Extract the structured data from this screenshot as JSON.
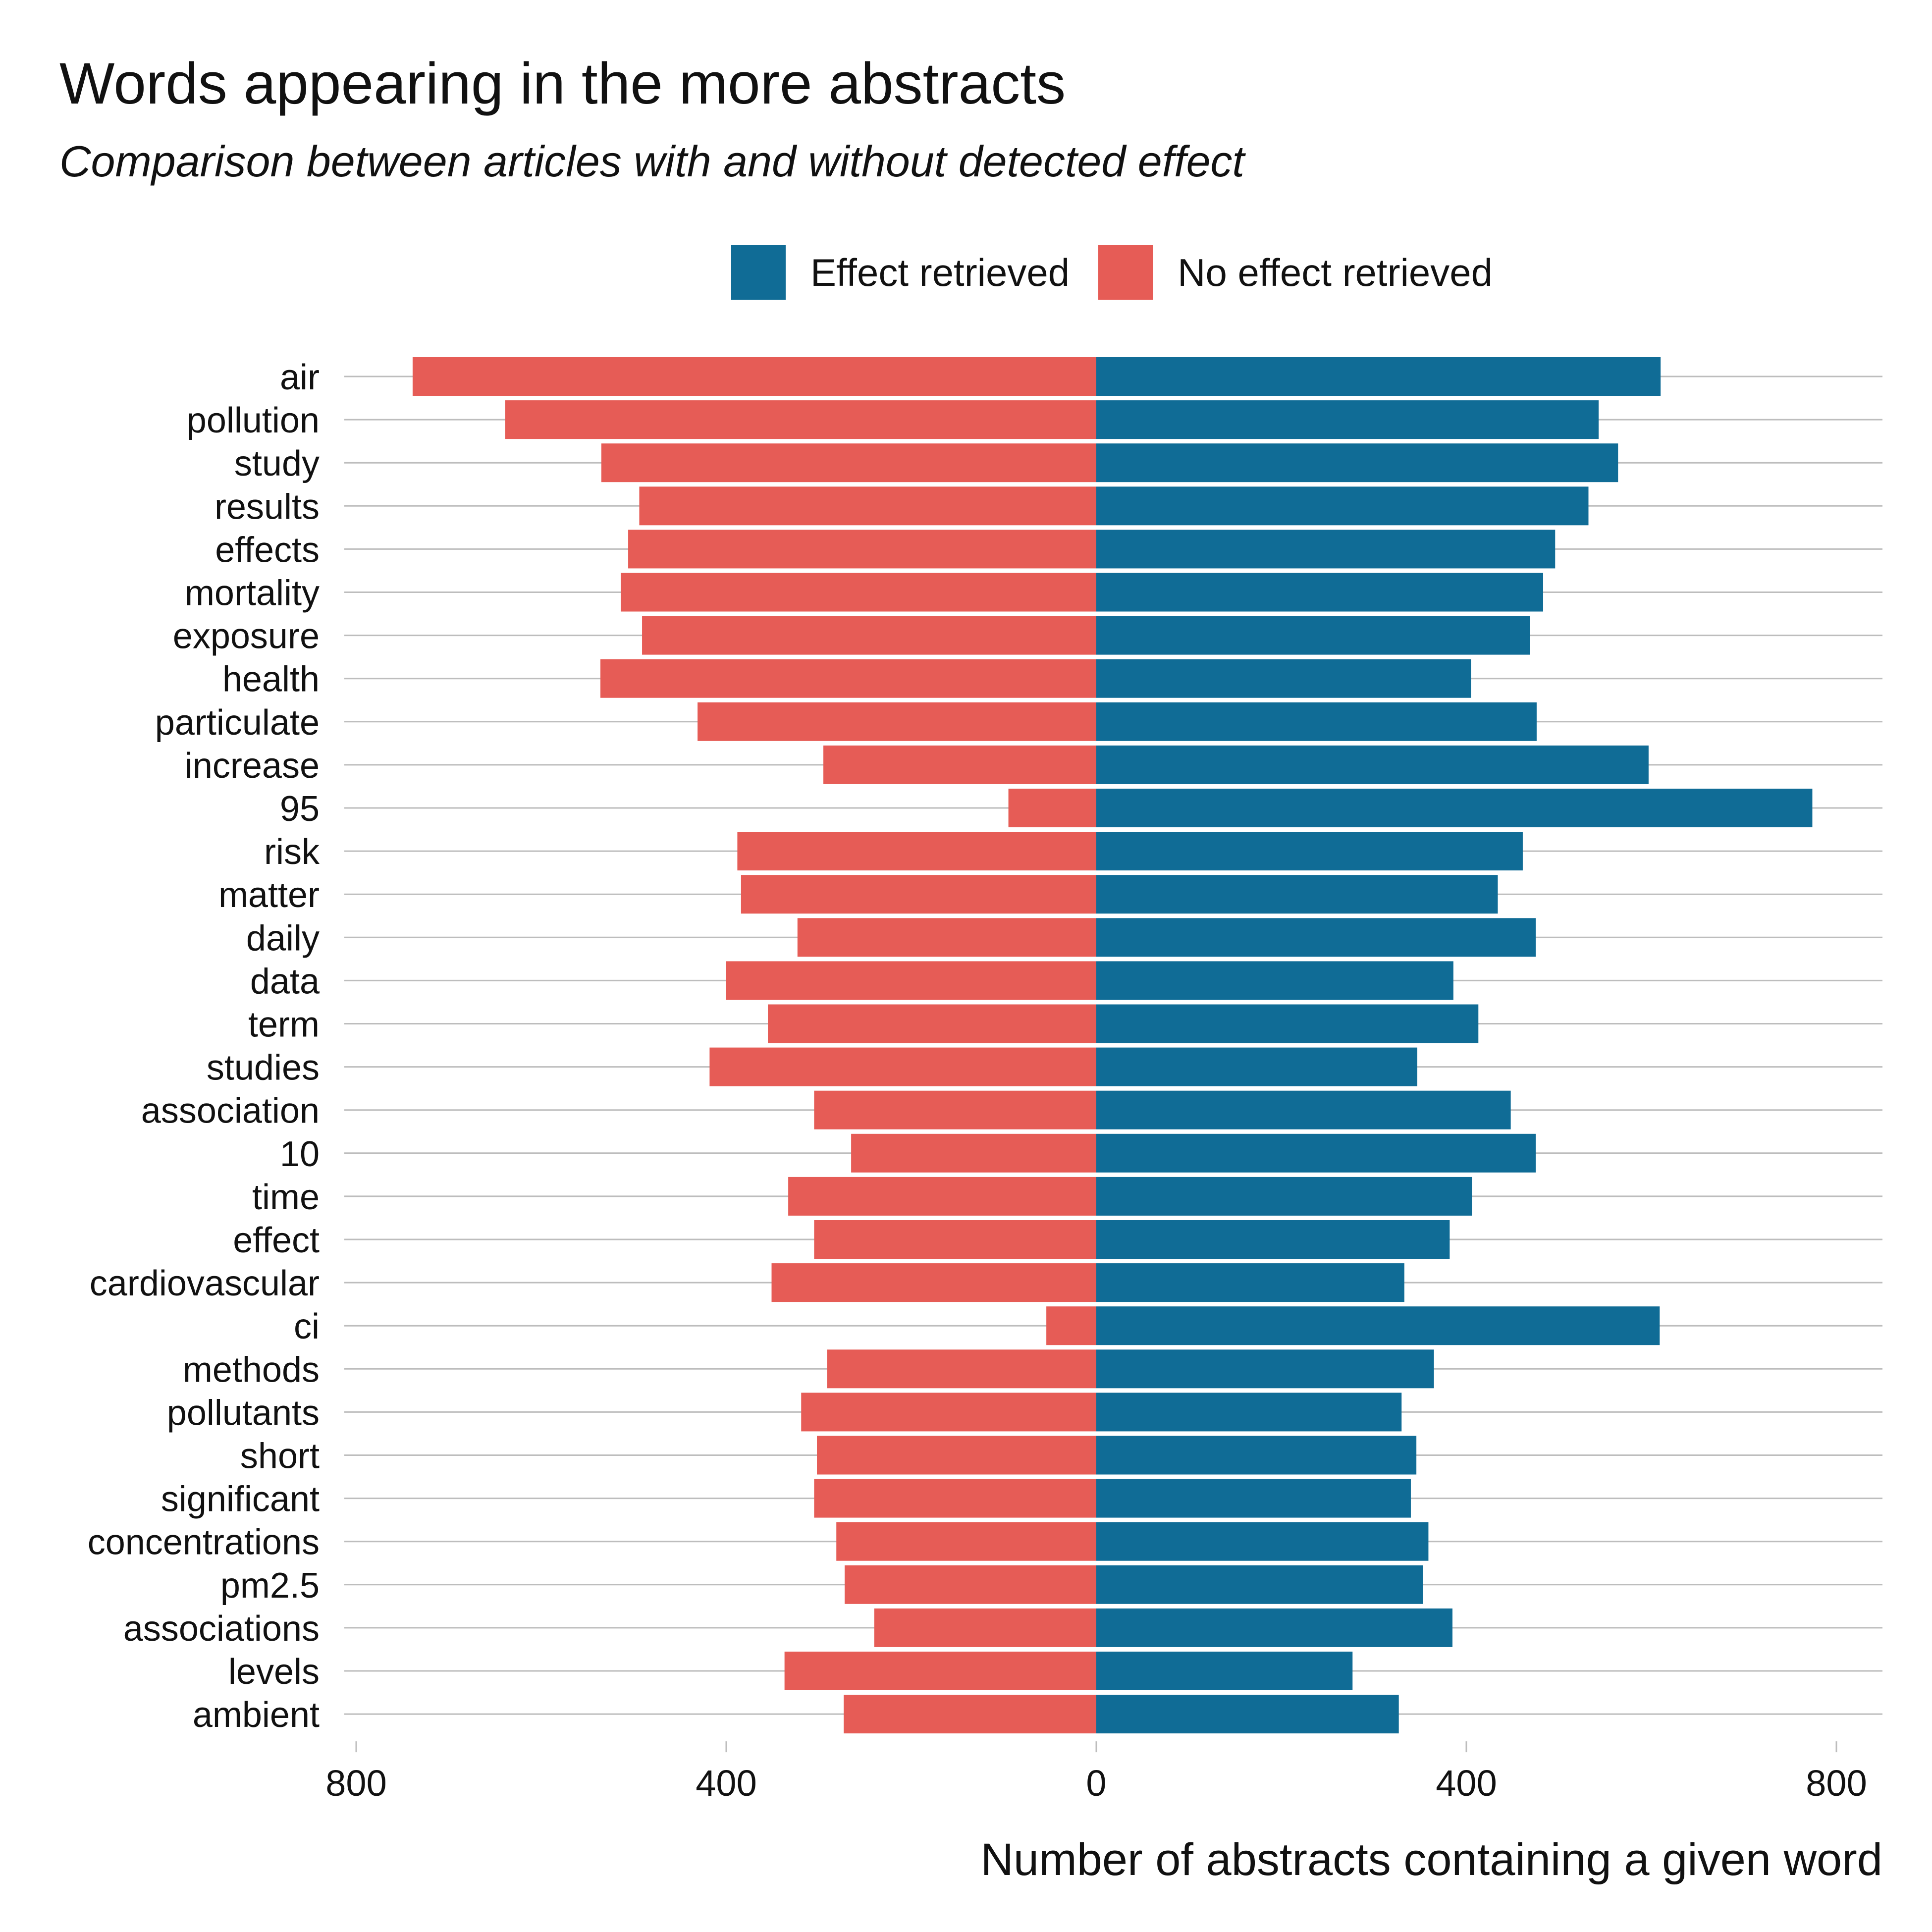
{
  "chart_data": {
    "type": "bar",
    "title": "Words appearing in the more abstracts",
    "subtitle": "Comparison between articles with and without detected effect",
    "xlabel": "Number of abstracts containing a given word",
    "ylabel": "",
    "xlim": [
      -800,
      850
    ],
    "x_ticks": [
      -800,
      -400,
      0,
      400,
      800
    ],
    "x_tick_labels": [
      "800",
      "400",
      "0",
      "400",
      "800"
    ],
    "grid": "horizontal",
    "legend_position": "top",
    "categories": [
      "air",
      "pollution",
      "study",
      "results",
      "effects",
      "mortality",
      "exposure",
      "health",
      "particulate",
      "increase",
      "95",
      "risk",
      "matter",
      "daily",
      "data",
      "term",
      "studies",
      "association",
      "10",
      "time",
      "effect",
      "cardiovascular",
      "ci",
      "methods",
      "pollutants",
      "short",
      "significant",
      "concentrations",
      "pm2.5",
      "associations",
      "levels",
      "ambient"
    ],
    "series": [
      {
        "name": "Effect retrieved",
        "color": "#106c96",
        "values": [
          610,
          543,
          564,
          532,
          496,
          483,
          469,
          405,
          476,
          597,
          774,
          461,
          434,
          475,
          386,
          413,
          347,
          448,
          475,
          406,
          382,
          333,
          609,
          365,
          330,
          346,
          340,
          359,
          353,
          385,
          277,
          327
        ]
      },
      {
        "name": "No effect retrieved",
        "color": "#e65c56",
        "values": [
          739,
          639,
          535,
          494,
          506,
          514,
          491,
          536,
          431,
          295,
          95,
          388,
          384,
          323,
          400,
          355,
          418,
          305,
          265,
          333,
          305,
          351,
          54,
          291,
          319,
          302,
          305,
          281,
          272,
          240,
          337,
          273
        ]
      }
    ]
  }
}
